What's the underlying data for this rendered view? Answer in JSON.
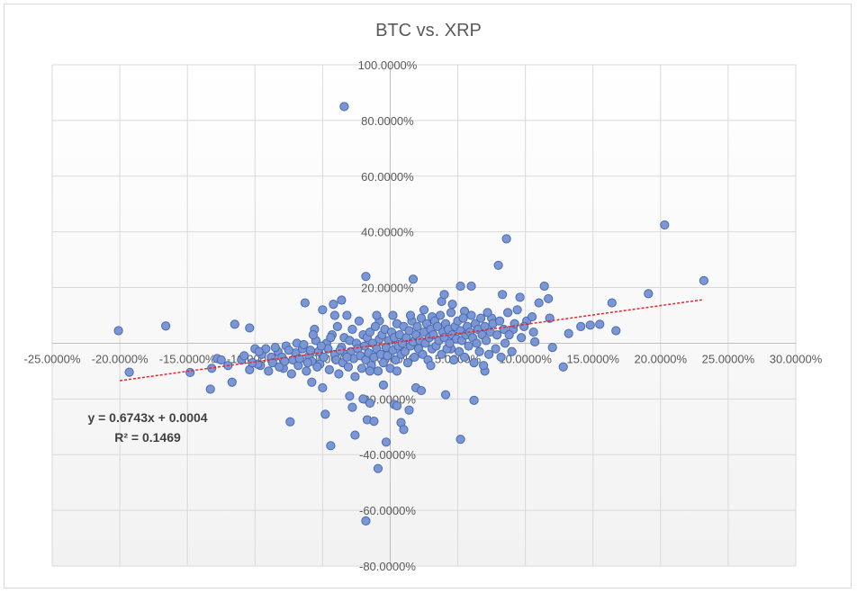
{
  "chart_data": {
    "type": "scatter",
    "title": "BTC vs. XRP",
    "xlabel": "",
    "ylabel": "",
    "xlim": [
      -0.25,
      0.3
    ],
    "ylim": [
      -0.8,
      1.0
    ],
    "x_ticks": [
      -0.25,
      -0.2,
      -0.15,
      -0.1,
      -0.05,
      0.0,
      0.05,
      0.1,
      0.15,
      0.2,
      0.25,
      0.3
    ],
    "x_tick_labels": [
      "-25.0000%",
      "-20.0000%",
      "-15.0000%",
      "-10.0000%",
      "-5.0000%",
      "0.0000%",
      "5.0000%",
      "10.0000%",
      "15.0000%",
      "20.0000%",
      "25.0000%",
      "30.0000%"
    ],
    "y_ticks": [
      1.0,
      0.8,
      0.6,
      0.4,
      0.2,
      0.0,
      -0.2,
      -0.4,
      -0.6,
      -0.8
    ],
    "y_tick_labels": [
      "100.0000%",
      "80.0000%",
      "60.0000%",
      "40.0000%",
      "20.0000%",
      "0.0000%",
      "-20.0000%",
      "-40.0000%",
      "-60.0000%",
      "-80.0000%"
    ],
    "grid": true,
    "marker_color": "#7b96d4",
    "marker_edge_color": "#4a6bb0",
    "trendline": {
      "slope": 0.6743,
      "intercept": 0.0004,
      "x_range": [
        -0.2,
        0.232
      ],
      "color": "#e8252a",
      "equation": "y = 0.6743x + 0.0004",
      "r_squared": "R² = 0.1469"
    },
    "points": [
      [
        -0.201,
        0.045
      ],
      [
        -0.193,
        -0.104
      ],
      [
        -0.166,
        0.062
      ],
      [
        -0.148,
        -0.105
      ],
      [
        -0.133,
        -0.165
      ],
      [
        -0.132,
        -0.09
      ],
      [
        -0.128,
        -0.055
      ],
      [
        -0.117,
        -0.14
      ],
      [
        -0.115,
        0.068
      ],
      [
        -0.104,
        0.055
      ],
      [
        -0.104,
        -0.095
      ],
      [
        -0.096,
        -0.08
      ],
      [
        -0.088,
        -0.05
      ],
      [
        -0.079,
        -0.09
      ],
      [
        -0.074,
        -0.282
      ],
      [
        -0.063,
        0.145
      ],
      [
        -0.058,
        -0.14
      ],
      [
        -0.056,
        0.05
      ],
      [
        -0.05,
        -0.16
      ],
      [
        -0.05,
        0.12
      ],
      [
        -0.048,
        -0.255
      ],
      [
        -0.042,
        0.14
      ],
      [
        -0.044,
        -0.368
      ],
      [
        -0.041,
        0.1
      ],
      [
        -0.036,
        0.155
      ],
      [
        -0.034,
        0.85
      ],
      [
        -0.032,
        0.1
      ],
      [
        -0.03,
        -0.19
      ],
      [
        -0.028,
        -0.23
      ],
      [
        -0.026,
        -0.33
      ],
      [
        -0.02,
        -0.2
      ],
      [
        -0.018,
        0.24
      ],
      [
        -0.018,
        -0.638
      ],
      [
        -0.017,
        -0.275
      ],
      [
        -0.015,
        -0.215
      ],
      [
        -0.012,
        -0.28
      ],
      [
        -0.009,
        -0.45
      ],
      [
        -0.008,
        0.08
      ],
      [
        -0.005,
        -0.15
      ],
      [
        -0.003,
        -0.355
      ],
      [
        0.002,
        0.1
      ],
      [
        0.003,
        -0.22
      ],
      [
        0.005,
        -0.225
      ],
      [
        0.008,
        -0.285
      ],
      [
        0.01,
        -0.31
      ],
      [
        0.014,
        -0.24
      ],
      [
        0.017,
        0.23
      ],
      [
        0.019,
        -0.16
      ],
      [
        0.023,
        -0.17
      ],
      [
        0.025,
        0.12
      ],
      [
        0.031,
        0.095
      ],
      [
        0.038,
        0.15
      ],
      [
        0.04,
        0.175
      ],
      [
        0.041,
        -0.185
      ],
      [
        0.045,
        -0.02
      ],
      [
        0.052,
        0.205
      ],
      [
        0.052,
        -0.345
      ],
      [
        0.055,
        0.115
      ],
      [
        0.06,
        0.205
      ],
      [
        0.062,
        -0.205
      ],
      [
        0.065,
        0.05
      ],
      [
        0.07,
        -0.1
      ],
      [
        0.075,
        0.09
      ],
      [
        0.08,
        0.28
      ],
      [
        0.083,
        0.175
      ],
      [
        0.086,
        0.375
      ],
      [
        0.091,
        0.05
      ],
      [
        0.096,
        0.165
      ],
      [
        0.101,
        0.08
      ],
      [
        0.105,
        0.095
      ],
      [
        0.106,
        0.04
      ],
      [
        0.107,
        0.005
      ],
      [
        0.11,
        0.145
      ],
      [
        0.114,
        0.205
      ],
      [
        0.117,
        0.16
      ],
      [
        0.118,
        0.09
      ],
      [
        0.12,
        -0.015
      ],
      [
        0.128,
        -0.085
      ],
      [
        0.132,
        0.035
      ],
      [
        0.141,
        0.06
      ],
      [
        0.148,
        0.065
      ],
      [
        0.155,
        0.068
      ],
      [
        0.164,
        0.145
      ],
      [
        0.167,
        0.045
      ],
      [
        0.191,
        0.178
      ],
      [
        0.203,
        0.425
      ],
      [
        0.232,
        0.225
      ],
      [
        -0.11,
        -0.06
      ],
      [
        -0.095,
        -0.04
      ],
      [
        -0.092,
        -0.02
      ],
      [
        -0.087,
        -0.07
      ],
      [
        -0.083,
        -0.03
      ],
      [
        -0.08,
        -0.05
      ],
      [
        -0.077,
        -0.01
      ],
      [
        -0.072,
        -0.06
      ],
      [
        -0.07,
        -0.035
      ],
      [
        -0.068,
        -0.08
      ],
      [
        -0.065,
        -0.02
      ],
      [
        -0.062,
        -0.1
      ],
      [
        -0.06,
        -0.045
      ],
      [
        -0.058,
        -0.065
      ],
      [
        -0.055,
        0.01
      ],
      [
        -0.053,
        -0.03
      ],
      [
        -0.052,
        -0.075
      ],
      [
        -0.049,
        -0.05
      ],
      [
        -0.047,
        0.0
      ],
      [
        -0.046,
        -0.02
      ],
      [
        -0.045,
        -0.095
      ],
      [
        -0.043,
        0.03
      ],
      [
        -0.041,
        -0.04
      ],
      [
        -0.04,
        -0.06
      ],
      [
        -0.039,
        0.06
      ],
      [
        -0.038,
        -0.11
      ],
      [
        -0.036,
        -0.015
      ],
      [
        -0.035,
        -0.07
      ],
      [
        -0.034,
        0.02
      ],
      [
        -0.033,
        -0.04
      ],
      [
        -0.031,
        -0.085
      ],
      [
        -0.03,
        0.01
      ],
      [
        -0.029,
        -0.03
      ],
      [
        -0.028,
        0.05
      ],
      [
        -0.027,
        -0.055
      ],
      [
        -0.026,
        -0.12
      ],
      [
        -0.025,
        0.0
      ],
      [
        -0.024,
        -0.02
      ],
      [
        -0.023,
        0.08
      ],
      [
        -0.022,
        -0.045
      ],
      [
        -0.021,
        -0.09
      ],
      [
        -0.02,
        0.03
      ],
      [
        -0.019,
        -0.01
      ],
      [
        -0.018,
        -0.06
      ],
      [
        -0.017,
        0.02
      ],
      [
        -0.016,
        -0.035
      ],
      [
        -0.015,
        0.04
      ],
      [
        -0.014,
        -0.08
      ],
      [
        -0.013,
        0.0
      ],
      [
        -0.012,
        -0.05
      ],
      [
        -0.011,
        0.06
      ],
      [
        -0.01,
        -0.02
      ],
      [
        -0.009,
        -0.1
      ],
      [
        -0.008,
        0.015
      ],
      [
        -0.007,
        -0.04
      ],
      [
        -0.006,
        0.03
      ],
      [
        -0.005,
        -0.07
      ],
      [
        -0.004,
        0.05
      ],
      [
        -0.003,
        -0.015
      ],
      [
        -0.002,
        -0.045
      ],
      [
        -0.001,
        0.01
      ],
      [
        0.0,
        -0.09
      ],
      [
        0.001,
        0.04
      ],
      [
        0.002,
        -0.025
      ],
      [
        0.003,
        0.02
      ],
      [
        0.004,
        -0.06
      ],
      [
        0.005,
        0.07
      ],
      [
        0.006,
        -0.01
      ],
      [
        0.007,
        0.03
      ],
      [
        0.008,
        -0.04
      ],
      [
        0.009,
        0.0
      ],
      [
        0.01,
        0.06
      ],
      [
        0.011,
        -0.03
      ],
      [
        0.012,
        0.02
      ],
      [
        0.013,
        -0.07
      ],
      [
        0.014,
        0.045
      ],
      [
        0.015,
        -0.01
      ],
      [
        0.016,
        0.08
      ],
      [
        0.017,
        0.005
      ],
      [
        0.018,
        -0.05
      ],
      [
        0.019,
        0.03
      ],
      [
        0.02,
        0.06
      ],
      [
        0.021,
        -0.02
      ],
      [
        0.022,
        0.01
      ],
      [
        0.023,
        0.09
      ],
      [
        0.024,
        -0.04
      ],
      [
        0.025,
        0.04
      ],
      [
        0.026,
        0.0
      ],
      [
        0.027,
        0.07
      ],
      [
        0.028,
        -0.06
      ],
      [
        0.029,
        0.02
      ],
      [
        0.03,
        0.05
      ],
      [
        0.031,
        -0.02
      ],
      [
        0.032,
        0.03
      ],
      [
        0.033,
        0.08
      ],
      [
        0.034,
        -0.01
      ],
      [
        0.035,
        0.06
      ],
      [
        0.036,
        0.01
      ],
      [
        0.037,
        0.1
      ],
      [
        0.038,
        -0.04
      ],
      [
        0.039,
        0.04
      ],
      [
        0.04,
        0.02
      ],
      [
        0.041,
        0.07
      ],
      [
        0.042,
        -0.02
      ],
      [
        0.043,
        0.05
      ],
      [
        0.044,
        0.0
      ],
      [
        0.045,
        0.11
      ],
      [
        0.046,
        0.03
      ],
      [
        0.047,
        -0.06
      ],
      [
        0.048,
        0.06
      ],
      [
        0.049,
        0.015
      ],
      [
        0.05,
        0.08
      ],
      [
        0.051,
        -0.03
      ],
      [
        0.052,
        0.045
      ],
      [
        0.053,
        0.01
      ],
      [
        0.054,
        0.09
      ],
      [
        0.055,
        -0.05
      ],
      [
        0.056,
        0.03
      ],
      [
        0.057,
        0.06
      ],
      [
        0.058,
        -0.01
      ],
      [
        0.059,
        0.04
      ],
      [
        0.06,
        0.1
      ],
      [
        0.061,
        0.02
      ],
      [
        0.062,
        -0.07
      ],
      [
        0.063,
        0.07
      ],
      [
        0.064,
        0.0
      ],
      [
        0.065,
        0.05
      ],
      [
        0.066,
        -0.03
      ],
      [
        0.067,
        0.09
      ],
      [
        0.068,
        0.03
      ],
      [
        0.069,
        -0.08
      ],
      [
        0.07,
        0.06
      ],
      [
        0.071,
        0.01
      ],
      [
        0.072,
        0.11
      ],
      [
        0.073,
        -0.04
      ],
      [
        0.074,
        0.04
      ],
      [
        0.076,
        0.07
      ],
      [
        0.078,
        -0.02
      ],
      [
        0.079,
        0.03
      ],
      [
        0.081,
        0.08
      ],
      [
        0.082,
        -0.05
      ],
      [
        0.084,
        0.05
      ],
      [
        0.085,
        0.0
      ],
      [
        0.087,
        0.11
      ],
      [
        0.088,
        0.03
      ],
      [
        0.09,
        -0.03
      ],
      [
        0.092,
        0.07
      ],
      [
        0.094,
        0.12
      ],
      [
        0.097,
        0.02
      ],
      [
        0.099,
        0.06
      ],
      [
        -0.1,
        -0.02
      ],
      [
        -0.098,
        -0.075
      ],
      [
        -0.09,
        -0.1
      ],
      [
        -0.085,
        -0.015
      ],
      [
        -0.082,
        -0.085
      ],
      [
        -0.078,
        -0.065
      ],
      [
        -0.075,
        -0.025
      ],
      [
        -0.073,
        -0.11
      ],
      [
        -0.069,
        0.0
      ],
      [
        -0.067,
        -0.055
      ],
      [
        -0.064,
        -0.005
      ],
      [
        -0.061,
        -0.07
      ],
      [
        -0.059,
        -0.025
      ],
      [
        -0.057,
        0.03
      ],
      [
        -0.054,
        -0.085
      ],
      [
        -0.051,
        -0.01
      ],
      [
        -0.044,
        0.02
      ],
      [
        -0.037,
        -0.025
      ],
      [
        -0.032,
        -0.05
      ],
      [
        -0.015,
        -0.1
      ],
      [
        -0.01,
        0.1
      ],
      [
        0.005,
        -0.1
      ],
      [
        0.015,
        0.1
      ],
      [
        0.03,
        -0.08
      ],
      [
        0.046,
        0.14
      ],
      [
        -0.12,
        -0.08
      ],
      [
        -0.125,
        -0.06
      ],
      [
        -0.108,
        -0.045
      ],
      [
        -0.102,
        -0.07
      ],
      [
        -0.097,
        -0.03
      ]
    ]
  }
}
